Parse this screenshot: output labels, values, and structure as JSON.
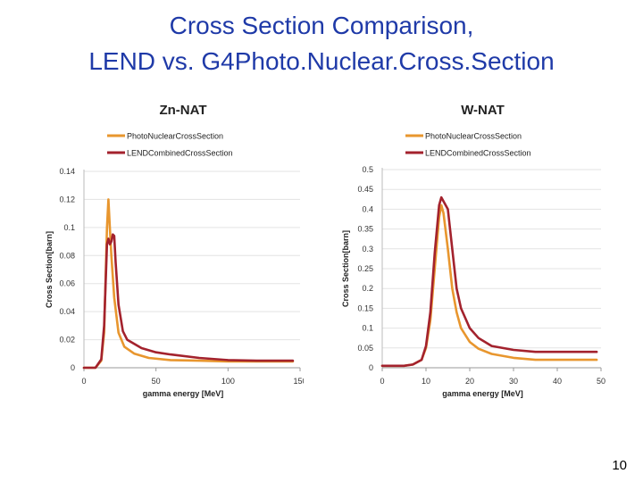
{
  "slide": {
    "title_line1": "Cross Section Comparison,",
    "title_line2": "LEND vs. G4Photo.Nuclear.Cross.Section",
    "page_number": "10"
  },
  "colors": {
    "photo": "#e8962e",
    "lend": "#a3222d",
    "title": "#1f3aa8"
  },
  "chart_data": [
    {
      "type": "line",
      "title": "Zn-NAT",
      "xlabel": "gamma energy [MeV]",
      "ylabel": "Cross Section[barn]",
      "xlim": [
        0,
        150
      ],
      "ylim": [
        0,
        0.14
      ],
      "xticks": [
        0,
        50,
        100,
        150
      ],
      "xtick_labels": [
        "0",
        "50",
        "100",
        "150"
      ],
      "yticks": [
        0,
        0.02,
        0.04,
        0.06,
        0.08,
        0.1,
        0.12,
        0.14
      ],
      "ytick_labels": [
        "0",
        "0.02",
        "0.04",
        "0.06",
        "0.08",
        "0.1",
        "0.12",
        "0.14"
      ],
      "legend": "top-left",
      "series": [
        {
          "name": "PhotoNuclearCrossSection",
          "x": [
            0,
            8,
            12,
            14,
            16,
            17,
            18,
            19,
            21,
            24,
            28,
            35,
            45,
            60,
            80,
            100,
            120,
            140,
            145
          ],
          "y": [
            0,
            0,
            0.005,
            0.025,
            0.1,
            0.12,
            0.1,
            0.08,
            0.05,
            0.025,
            0.015,
            0.01,
            0.007,
            0.0055,
            0.005,
            0.0045,
            0.0045,
            0.0045,
            0.0045
          ]
        },
        {
          "name": "LENDCombinedCrossSection",
          "x": [
            0,
            8,
            12,
            14,
            16,
            17,
            18,
            19,
            20,
            21,
            22,
            24,
            27,
            30,
            40,
            50,
            60,
            80,
            100,
            120,
            140,
            145
          ],
          "y": [
            0,
            0,
            0.006,
            0.03,
            0.088,
            0.092,
            0.088,
            0.09,
            0.095,
            0.094,
            0.075,
            0.045,
            0.026,
            0.02,
            0.014,
            0.011,
            0.0095,
            0.007,
            0.0055,
            0.005,
            0.005,
            0.005
          ]
        }
      ]
    },
    {
      "type": "line",
      "title": "W-NAT",
      "xlabel": "gamma energy [MeV]",
      "ylabel": "Cross Section[barn]",
      "xlim": [
        0,
        50
      ],
      "ylim": [
        0,
        0.5
      ],
      "xticks": [
        0,
        10,
        20,
        30,
        40,
        50
      ],
      "xtick_labels": [
        "0",
        "10",
        "20",
        "30",
        "40",
        "50"
      ],
      "yticks": [
        0,
        0.05,
        0.1,
        0.15,
        0.2,
        0.25,
        0.3,
        0.35,
        0.4,
        0.45,
        0.5
      ],
      "ytick_labels": [
        "0",
        "0.05",
        "0.1",
        "0.15",
        "0.2",
        "0.25",
        "0.3",
        "0.35",
        "0.4",
        "0.45",
        "0.5"
      ],
      "legend": "top-left",
      "series": [
        {
          "name": "PhotoNuclearCrossSection",
          "x": [
            0,
            5,
            7,
            9,
            10,
            11,
            12,
            13,
            13.5,
            14,
            15,
            16,
            17,
            18,
            20,
            22,
            25,
            30,
            35,
            40,
            45,
            49
          ],
          "y": [
            0.005,
            0.005,
            0.008,
            0.02,
            0.05,
            0.12,
            0.25,
            0.38,
            0.41,
            0.39,
            0.3,
            0.2,
            0.14,
            0.1,
            0.065,
            0.048,
            0.035,
            0.025,
            0.02,
            0.02,
            0.02,
            0.02
          ]
        },
        {
          "name": "LENDCombinedCrossSection",
          "x": [
            0,
            5,
            7,
            9,
            10,
            11,
            12,
            13,
            13.5,
            14,
            15,
            16,
            17,
            18,
            20,
            22,
            25,
            30,
            35,
            40,
            45,
            49
          ],
          "y": [
            0.005,
            0.005,
            0.008,
            0.02,
            0.055,
            0.14,
            0.29,
            0.41,
            0.43,
            0.42,
            0.4,
            0.3,
            0.2,
            0.15,
            0.1,
            0.075,
            0.055,
            0.045,
            0.04,
            0.04,
            0.04,
            0.04
          ]
        }
      ]
    }
  ]
}
